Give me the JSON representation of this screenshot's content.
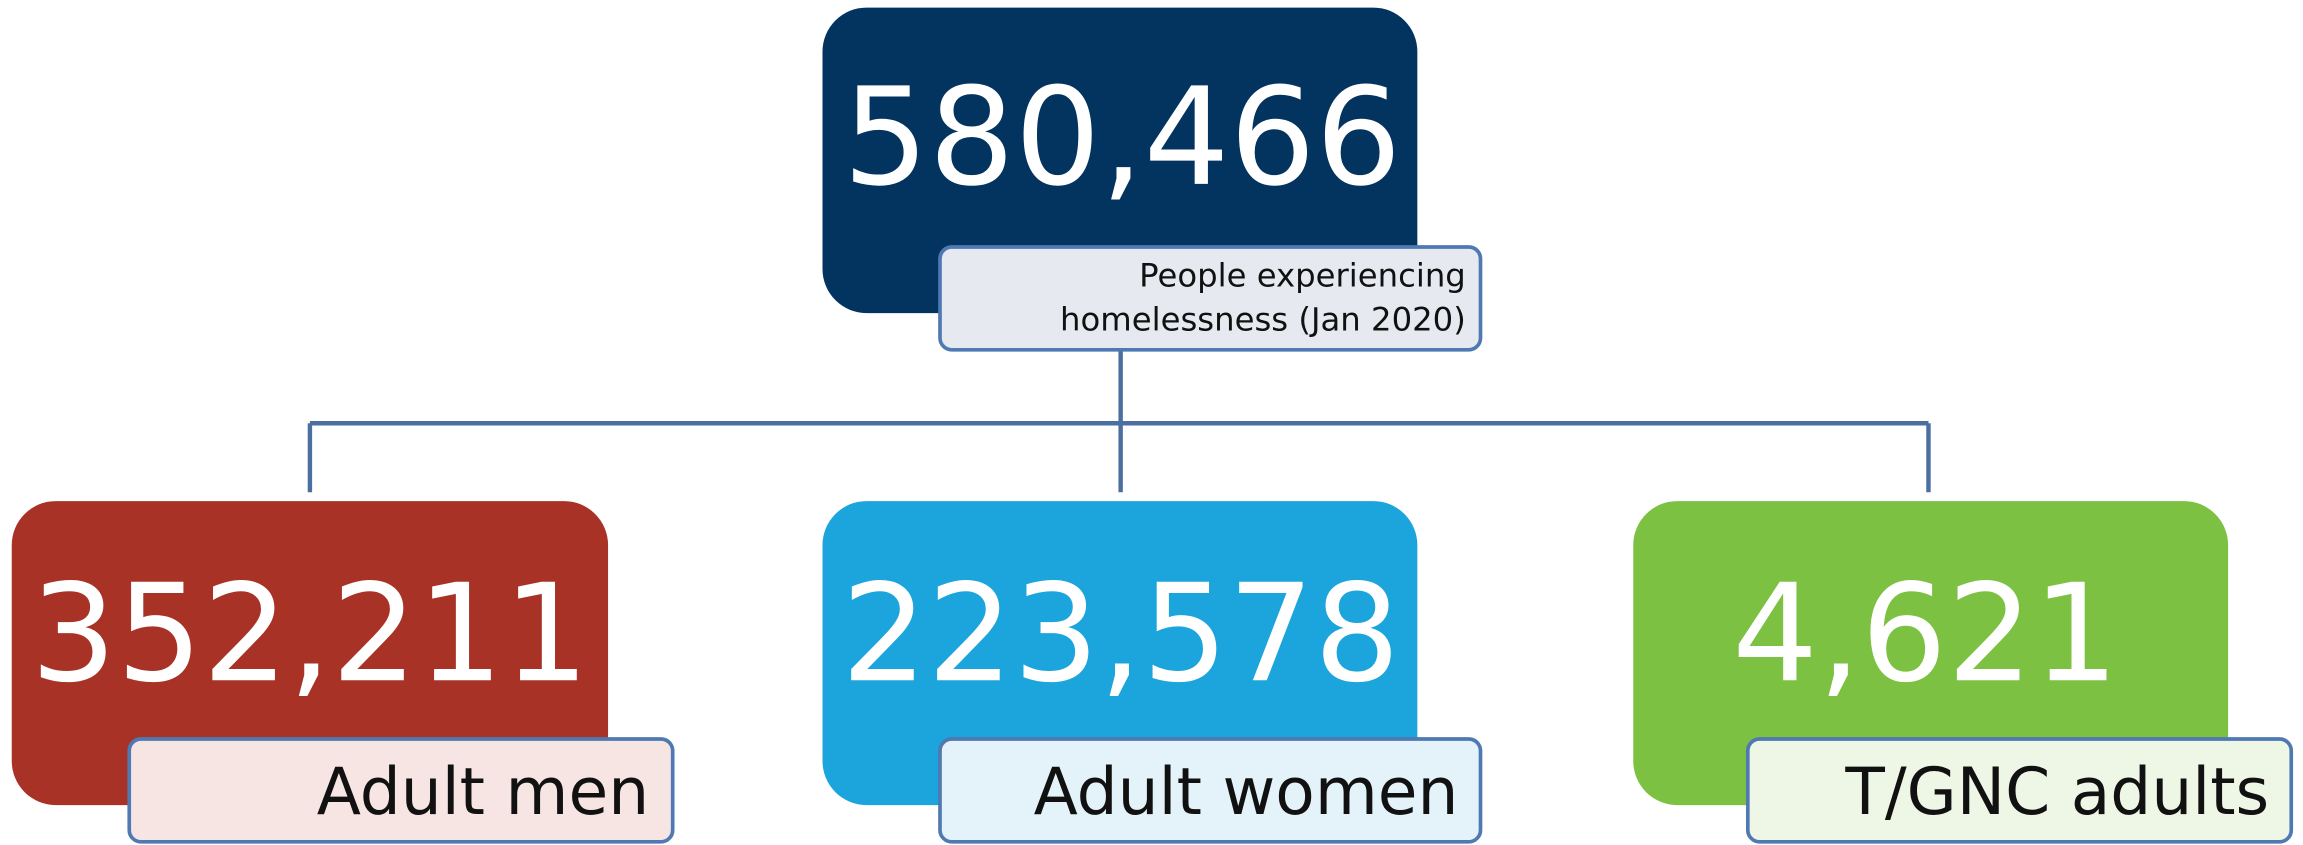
{
  "root": {
    "value": "580,466",
    "label": [
      "People experiencing",
      "homelessness (Jan 2020)"
    ]
  },
  "children": [
    {
      "value": "352,211",
      "label": "Adult men"
    },
    {
      "value": "223,578",
      "label": "Adult women"
    },
    {
      "value": "4,621",
      "label": "T/GNC adults"
    }
  ]
}
